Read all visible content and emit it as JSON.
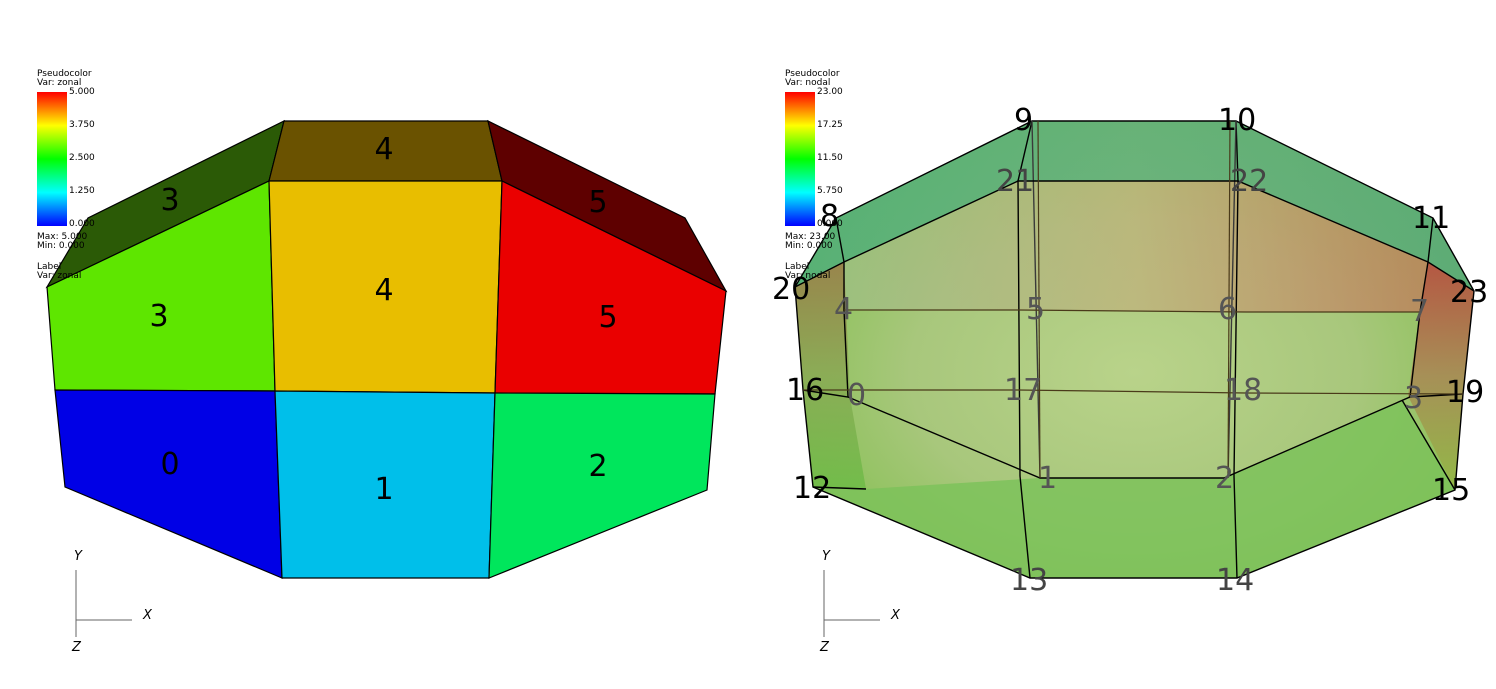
{
  "left": {
    "legend": {
      "plot_type": "Pseudocolor",
      "var": "Var: zonal",
      "ticks": [
        "5.000",
        "3.750",
        "2.500",
        "1.250",
        "0.000"
      ],
      "max": "Max: 5.000",
      "min": "Min: 0.000",
      "label_plot": "Label",
      "label_var": "Var: zonal"
    },
    "zone_labels": [
      "0",
      "1",
      "2",
      "3",
      "3",
      "4",
      "4",
      "5",
      "5"
    ],
    "axes": {
      "y": "Y",
      "x": "X",
      "z": "Z"
    }
  },
  "right": {
    "legend": {
      "plot_type": "Pseudocolor",
      "var": "Var: nodal",
      "ticks": [
        "23.00",
        "17.25",
        "11.50",
        "5.750",
        "0.000"
      ],
      "max": "Max: 23.00",
      "min": "Min: 0.000",
      "label_plot": "Label",
      "label_var": "Var: nodal"
    },
    "node_labels": [
      "0",
      "1",
      "2",
      "3",
      "4",
      "5",
      "6",
      "7",
      "8",
      "9",
      "10",
      "11",
      "12",
      "13",
      "14",
      "15",
      "16",
      "17",
      "18",
      "19",
      "20",
      "21",
      "22",
      "23"
    ],
    "axes": {
      "y": "Y",
      "x": "X",
      "z": "Z"
    }
  },
  "colors": {
    "zone0": "#0000e6",
    "zone1": "#00bfea",
    "zone2": "#00e65c",
    "zone3_front": "#5ee600",
    "zone3_top": "#2b5a06",
    "zone4_front": "#e8be00",
    "zone4_top": "#6a5200",
    "zone5_front": "#ea0000",
    "zone5_top": "#5e0000"
  }
}
